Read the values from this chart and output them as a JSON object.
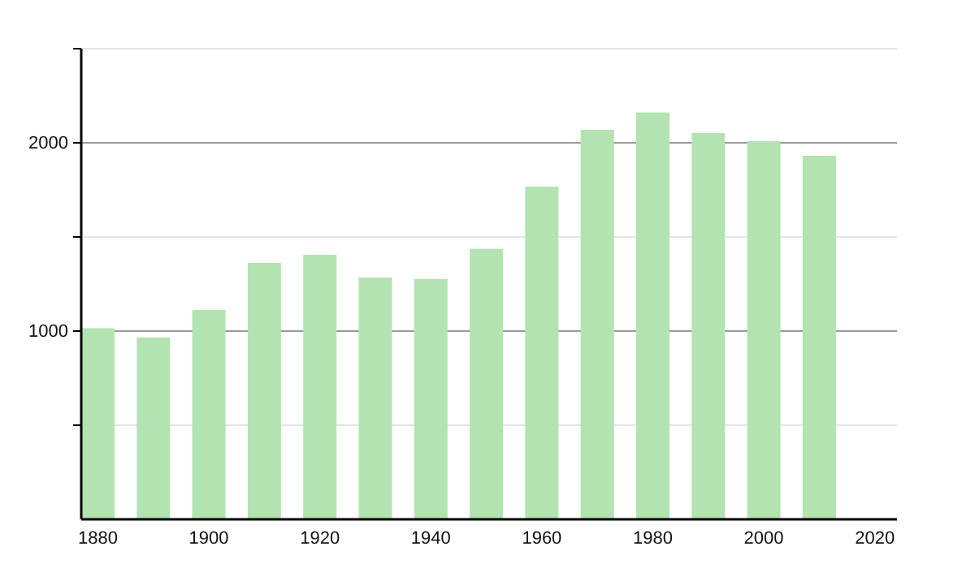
{
  "chart_data": {
    "type": "bar",
    "x": [
      1880,
      1890,
      1900,
      1910,
      1920,
      1930,
      1940,
      1950,
      1960,
      1970,
      1980,
      1990,
      2000,
      2010
    ],
    "values": [
      1015,
      966,
      1112,
      1362,
      1405,
      1284,
      1276,
      1437,
      1767,
      2069,
      2161,
      2052,
      2009,
      1931
    ],
    "color": "#b2e3b0",
    "xlim": [
      1877,
      2024
    ],
    "xticks": [
      1880,
      1900,
      1920,
      1940,
      1960,
      1980,
      2000,
      2020
    ],
    "ylim": [
      0,
      2500
    ],
    "yticks": [
      {
        "value": 500,
        "label": null
      },
      1000,
      {
        "value": 1500,
        "label": null
      },
      2000,
      {
        "value": 2500,
        "label": null
      }
    ],
    "grid": "y"
  }
}
